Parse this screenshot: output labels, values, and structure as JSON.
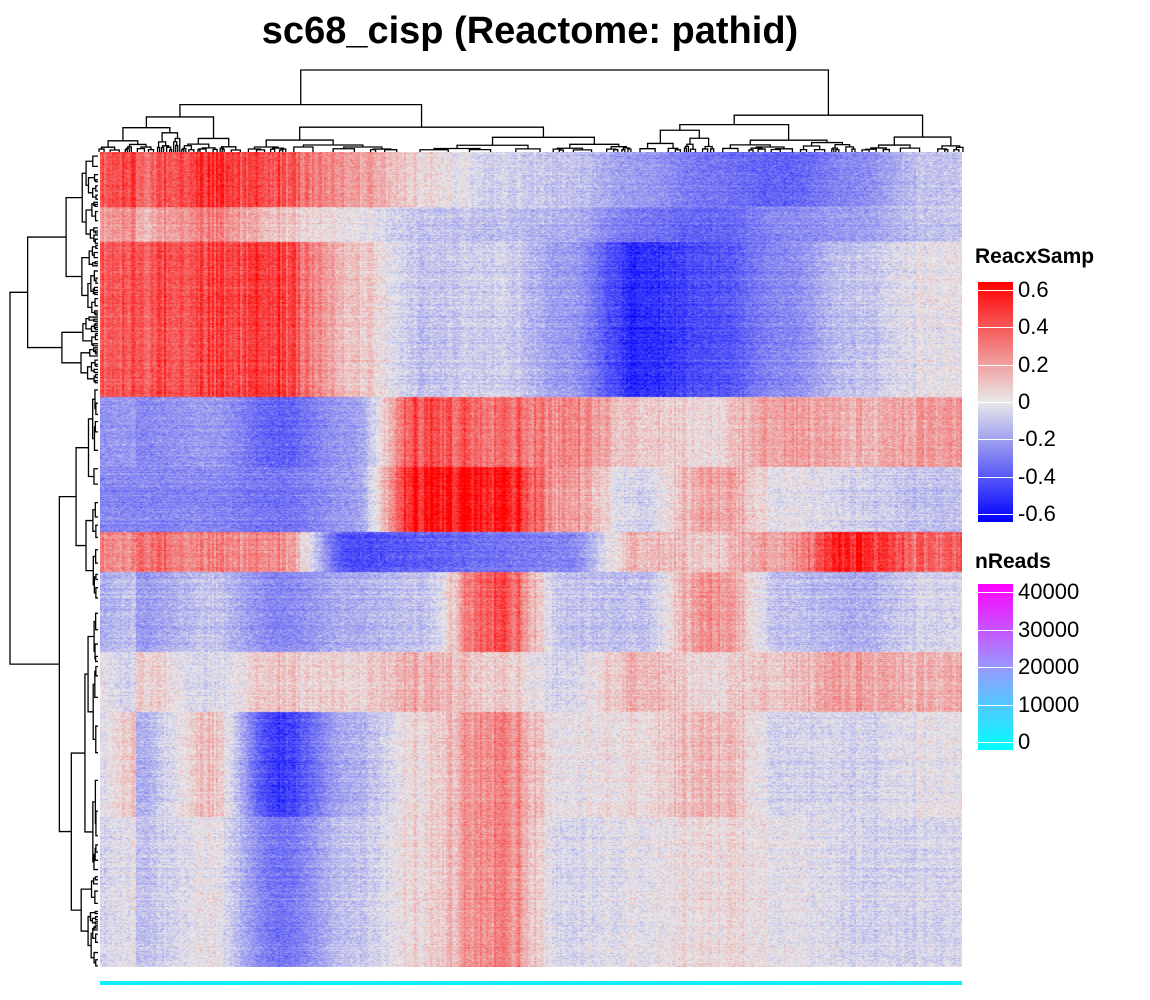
{
  "title": "sc68_cisp (Reactome: pathid)",
  "chart_data": {
    "type": "heatmap",
    "title": "sc68_cisp (Reactome: pathid)",
    "xlabel": "",
    "ylabel": "",
    "row_dendrogram": true,
    "column_dendrogram": true,
    "legends": [
      {
        "title": "ReacxSamp",
        "ticks": [
          "0.6",
          "0.4",
          "0.2",
          "0",
          "-0.2",
          "-0.4",
          "-0.6"
        ],
        "range": [
          -0.6,
          0.6
        ],
        "colors": [
          "#0000ff",
          "#e9e9e9",
          "#ff0000"
        ]
      },
      {
        "title": "nReads",
        "ticks": [
          "40000",
          "30000",
          "20000",
          "10000",
          "0"
        ],
        "range": [
          0,
          40000
        ],
        "colors": [
          "#00ffff",
          "#ff00ff"
        ]
      }
    ],
    "row_blocks": [
      {
        "rows": [
          0,
          55
        ],
        "col_pattern": [
          0.35,
          0.45,
          0.4,
          0.2,
          0.05,
          -0.05,
          -0.1,
          -0.2,
          -0.3,
          -0.35,
          -0.25,
          -0.1
        ]
      },
      {
        "rows": [
          55,
          90
        ],
        "col_pattern": [
          0.15,
          0.25,
          0.1,
          0.0,
          -0.1,
          -0.1,
          -0.15,
          -0.3,
          -0.35,
          -0.25,
          -0.2,
          -0.1
        ]
      },
      {
        "rows": [
          90,
          245
        ],
        "col_pattern": [
          0.4,
          0.4,
          0.45,
          0.1,
          -0.1,
          -0.05,
          -0.2,
          -0.5,
          -0.4,
          -0.25,
          -0.1,
          0.0
        ]
      },
      {
        "rows": [
          245,
          315
        ],
        "col_pattern": [
          -0.25,
          -0.2,
          -0.35,
          -0.2,
          0.4,
          0.35,
          0.25,
          0.1,
          0.05,
          0.2,
          0.15,
          0.2
        ]
      },
      {
        "rows": [
          315,
          380
        ],
        "col_pattern": [
          -0.25,
          -0.25,
          -0.3,
          -0.2,
          0.55,
          0.6,
          0.2,
          -0.05,
          0.2,
          0.0,
          -0.05,
          -0.1
        ]
      },
      {
        "rows": [
          380,
          420
        ],
        "col_pattern": [
          0.35,
          0.25,
          0.25,
          -0.4,
          -0.35,
          -0.3,
          -0.25,
          0.15,
          0.1,
          0.2,
          0.55,
          0.35
        ]
      },
      {
        "rows": [
          420,
          500
        ],
        "col_pattern": [
          -0.2,
          -0.1,
          -0.25,
          -0.15,
          -0.1,
          0.45,
          -0.1,
          -0.1,
          0.25,
          -0.1,
          -0.15,
          -0.05
        ]
      },
      {
        "rows": [
          500,
          560
        ],
        "col_pattern": [
          0.1,
          -0.05,
          0.1,
          0.05,
          0.15,
          0.1,
          -0.05,
          0.15,
          0.05,
          0.1,
          0.2,
          0.15
        ]
      },
      {
        "rows": [
          560,
          665
        ],
        "col_pattern": [
          -0.15,
          0.1,
          -0.45,
          -0.15,
          0.05,
          0.3,
          0.0,
          0.05,
          0.15,
          -0.05,
          -0.05,
          0.0
        ]
      },
      {
        "rows": [
          665,
          815
        ],
        "col_pattern": [
          -0.1,
          0.0,
          -0.3,
          -0.1,
          0.05,
          0.3,
          -0.05,
          0.0,
          0.05,
          0.0,
          -0.05,
          -0.05
        ]
      }
    ]
  }
}
